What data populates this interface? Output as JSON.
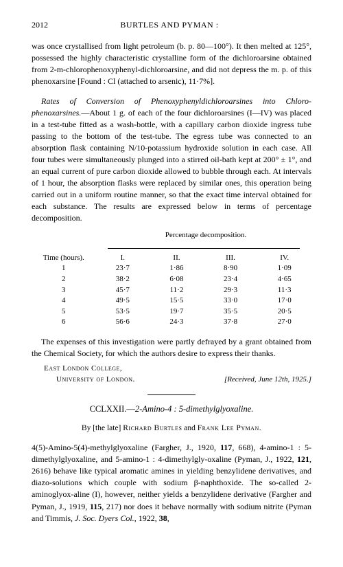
{
  "header": {
    "page_number": "2012",
    "running_head": "BURTLES AND PYMAN :"
  },
  "para1": "was once crystallised from light petroleum (b. p. 80—100°). It then melted at 125°, possessed the highly characteristic crystalline form of the dichloroarsine obtained from 2-m-chlorophenoxyphenyl-dichloroarsine, and did not depress the m. p. of this phenoxarsine [Found : Cl (attached to arsenic), 11·7%].",
  "para2_lead": "Rates of Conversion of Phenoxyphenyldichloroarsines into Chloro-phenoxarsines.",
  "para2_body": "—About 1 g. of each of the four dichloroarsines (I—IV) was placed in a test-tube fitted as a wash-bottle, with a capillary carbon dioxide ingress tube passing to the bottom of the test-tube. The egress tube was connected to an absorption flask containing N/10-potassium hydroxide solution in each case. All four tubes were simultaneously plunged into a stirred oil-bath kept at 200° ± 1°, and an equal current of pure carbon dioxide allowed to bubble through each. At intervals of 1 hour, the absorption flasks were replaced by similar ones, this operation being carried out in a uniform routine manner, so that the exact time interval obtained for each substance. The results are expressed below in terms of percentage decomposition.",
  "table": {
    "caption": "Percentage decomposition.",
    "time_label": "Time (hours).",
    "columns": [
      "I.",
      "II.",
      "III.",
      "IV."
    ],
    "rows": [
      {
        "t": "1",
        "v": [
          "23·7",
          "1·86",
          "8·90",
          "1·09"
        ]
      },
      {
        "t": "2",
        "v": [
          "38·2",
          "6·08",
          "23·4",
          "4·65"
        ]
      },
      {
        "t": "3",
        "v": [
          "45·7",
          "11·2",
          "29·3",
          "11·3"
        ]
      },
      {
        "t": "4",
        "v": [
          "49·5",
          "15·5",
          "33·0",
          "17·0"
        ]
      },
      {
        "t": "5",
        "v": [
          "53·5",
          "19·7",
          "35·5",
          "20·5"
        ]
      },
      {
        "t": "6",
        "v": [
          "56·6",
          "24·3",
          "37·8",
          "27·0"
        ]
      }
    ]
  },
  "para3": "The expenses of this investigation were partly defrayed by a grant obtained from the Chemical Society, for which the authors desire to express their thanks.",
  "affiliation": {
    "line1": "East London College,",
    "line2": "University of London.",
    "received": "[Received, June 12th, 1925.]"
  },
  "article2": {
    "number": "CCLXXII.—",
    "title_ital": "2-Amino-4 : 5-dimethylglyoxaline.",
    "byline_pre": "By [the late] ",
    "author1": "Richard Burtles",
    "byline_mid": " and ",
    "author2": "Frank Lee Pyman.",
    "body_open": "4(5)-Amino-5(4)-methylglyoxaline (Fargher, J., 1920, ",
    "b1": "117",
    "body_a": ", 668), 4-amino-1 : 5-dimethylglyoxaline, and 5-amino-1 : 4-dimethylgly-oxaline (Pyman, J., 1922, ",
    "b2": "121",
    "body_b": ", 2616) behave like typical aromatic amines in yielding benzylidene derivatives, and diazo-solutions which couple with sodium β-naphthoxide. The so-called 2-aminoglyox-aline (I), however, neither yields a benzylidene derivative (Fargher and Pyman, J., 1919, ",
    "b3": "115",
    "body_c": ", 217) nor does it behave normally with sodium nitrite (Pyman and Timmis, ",
    "ital_jrn": "J. Soc. Dyers Col.",
    "body_d": ", 1922, ",
    "b4": "38",
    "body_e": ","
  }
}
